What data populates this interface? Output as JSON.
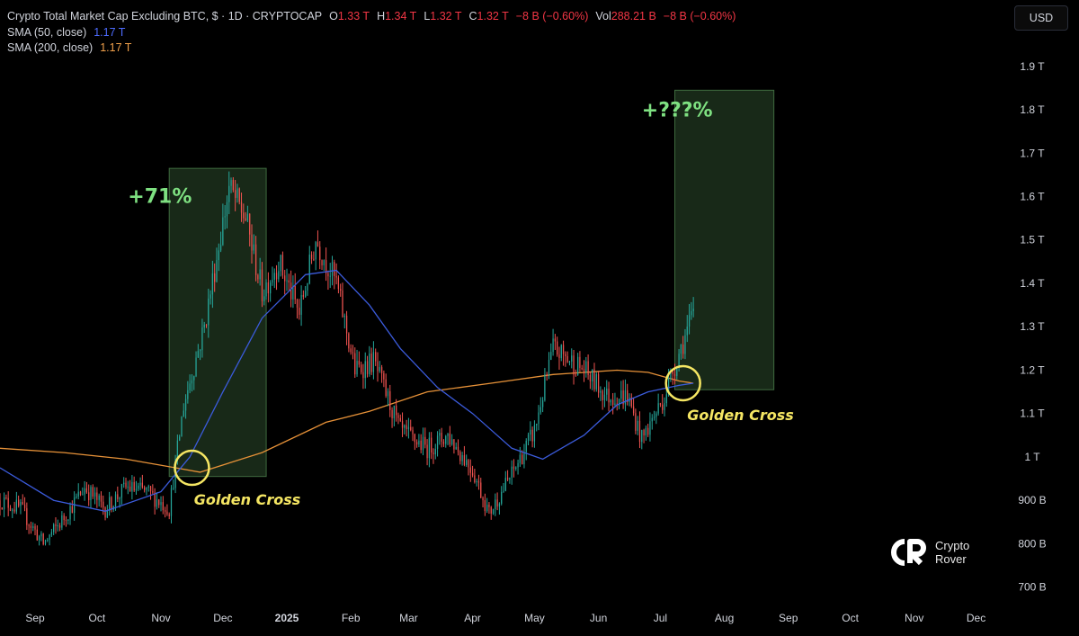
{
  "header": {
    "title": "Crypto Total Market Cap Excluding BTC, $ · 1D · CRYPTOCAP",
    "o_label": "O",
    "o_value": "1.33 T",
    "h_label": "H",
    "h_value": "1.34 T",
    "l_label": "L",
    "l_value": "1.32 T",
    "c_label": "C",
    "c_value": "1.32 T",
    "change": "−8 B (−0.60%)",
    "vol_label": "Vol",
    "vol_value": "288.21 B",
    "vol_change": "−8 B (−0.60%)",
    "sma50_label": "SMA (50, close)",
    "sma50_value": "1.17 T",
    "sma200_label": "SMA (200, close)",
    "sma200_value": "1.17 T"
  },
  "currency_button": "USD",
  "logo": {
    "line1": "Crypto",
    "line2": "Rover"
  },
  "colors": {
    "up": "#26a69a",
    "down": "#ef5350",
    "sma50": "#3b5bdb",
    "sma200": "#e69138",
    "box_fill": "#1b2e1b",
    "box_border": "#3f6b3f",
    "annotation_green": "#7ee081",
    "golden": "#f5e663"
  },
  "chart_data": {
    "type": "candlestick",
    "title": "Crypto Total Market Cap Excluding BTC",
    "y_unit": "USD",
    "ylim": [
      0.66,
      1.97
    ],
    "y_ticks": [
      {
        "v": 1.9,
        "label": "1.9 T"
      },
      {
        "v": 1.8,
        "label": "1.8 T"
      },
      {
        "v": 1.7,
        "label": "1.7 T"
      },
      {
        "v": 1.6,
        "label": "1.6 T"
      },
      {
        "v": 1.5,
        "label": "1.5 T"
      },
      {
        "v": 1.4,
        "label": "1.4 T"
      },
      {
        "v": 1.3,
        "label": "1.3 T"
      },
      {
        "v": 1.2,
        "label": "1.2 T"
      },
      {
        "v": 1.1,
        "label": "1.1 T"
      },
      {
        "v": 1.0,
        "label": "1 T"
      },
      {
        "v": 0.9,
        "label": "900 B"
      },
      {
        "v": 0.8,
        "label": "800 B"
      },
      {
        "v": 0.7,
        "label": "700 B"
      }
    ],
    "x_ticks": [
      {
        "date": "2024-09-01",
        "label": "Sep"
      },
      {
        "date": "2024-10-01",
        "label": "Oct"
      },
      {
        "date": "2024-11-01",
        "label": "Nov"
      },
      {
        "date": "2024-12-01",
        "label": "Dec"
      },
      {
        "date": "2025-01-01",
        "label": "2025",
        "bold": true
      },
      {
        "date": "2025-02-01",
        "label": "Feb"
      },
      {
        "date": "2025-03-01",
        "label": "Mar"
      },
      {
        "date": "2025-04-01",
        "label": "Apr"
      },
      {
        "date": "2025-05-01",
        "label": "May"
      },
      {
        "date": "2025-06-01",
        "label": "Jun"
      },
      {
        "date": "2025-07-01",
        "label": "Jul"
      },
      {
        "date": "2025-08-01",
        "label": "Aug"
      },
      {
        "date": "2025-09-01",
        "label": "Sep"
      },
      {
        "date": "2025-10-01",
        "label": "Oct"
      },
      {
        "date": "2025-11-01",
        "label": "Nov"
      },
      {
        "date": "2025-12-01",
        "label": "Dec"
      }
    ],
    "xlim": [
      "2024-08-15",
      "2025-12-16"
    ],
    "price_anchors": [
      [
        "2024-08-15",
        0.9
      ],
      [
        "2024-08-25",
        0.88
      ],
      [
        "2024-09-05",
        0.8
      ],
      [
        "2024-09-15",
        0.86
      ],
      [
        "2024-09-25",
        0.93
      ],
      [
        "2024-10-05",
        0.88
      ],
      [
        "2024-10-15",
        0.93
      ],
      [
        "2024-10-25",
        0.92
      ],
      [
        "2024-11-05",
        0.88
      ],
      [
        "2024-11-12",
        1.12
      ],
      [
        "2024-11-22",
        1.3
      ],
      [
        "2024-12-04",
        1.62
      ],
      [
        "2024-12-12",
        1.55
      ],
      [
        "2024-12-20",
        1.38
      ],
      [
        "2024-12-28",
        1.45
      ],
      [
        "2025-01-07",
        1.33
      ],
      [
        "2025-01-15",
        1.5
      ],
      [
        "2025-01-25",
        1.4
      ],
      [
        "2025-02-03",
        1.2
      ],
      [
        "2025-02-12",
        1.22
      ],
      [
        "2025-02-25",
        1.06
      ],
      [
        "2025-03-10",
        1.02
      ],
      [
        "2025-03-20",
        1.05
      ],
      [
        "2025-04-01",
        0.97
      ],
      [
        "2025-04-09",
        0.87
      ],
      [
        "2025-04-20",
        0.96
      ],
      [
        "2025-05-01",
        1.06
      ],
      [
        "2025-05-10",
        1.25
      ],
      [
        "2025-05-25",
        1.2
      ],
      [
        "2025-06-05",
        1.14
      ],
      [
        "2025-06-15",
        1.14
      ],
      [
        "2025-06-22",
        1.04
      ],
      [
        "2025-07-03",
        1.14
      ],
      [
        "2025-07-10",
        1.24
      ],
      [
        "2025-07-17",
        1.33
      ]
    ],
    "sma50": [
      [
        "2024-08-15",
        0.975
      ],
      [
        "2024-09-10",
        0.9
      ],
      [
        "2024-10-05",
        0.875
      ],
      [
        "2024-11-01",
        0.92
      ],
      [
        "2024-11-15",
        1.0
      ],
      [
        "2024-12-01",
        1.15
      ],
      [
        "2024-12-20",
        1.32
      ],
      [
        "2025-01-10",
        1.42
      ],
      [
        "2025-01-25",
        1.43
      ],
      [
        "2025-02-10",
        1.35
      ],
      [
        "2025-02-25",
        1.25
      ],
      [
        "2025-03-15",
        1.16
      ],
      [
        "2025-04-01",
        1.1
      ],
      [
        "2025-04-20",
        1.02
      ],
      [
        "2025-05-05",
        0.995
      ],
      [
        "2025-05-25",
        1.05
      ],
      [
        "2025-06-10",
        1.12
      ],
      [
        "2025-06-25",
        1.15
      ],
      [
        "2025-07-10",
        1.165
      ],
      [
        "2025-07-17",
        1.17
      ]
    ],
    "sma200": [
      [
        "2024-08-15",
        1.02
      ],
      [
        "2024-09-15",
        1.01
      ],
      [
        "2024-10-15",
        0.995
      ],
      [
        "2024-11-08",
        0.975
      ],
      [
        "2024-11-20",
        0.965
      ],
      [
        "2024-12-20",
        1.01
      ],
      [
        "2025-01-20",
        1.08
      ],
      [
        "2025-02-10",
        1.105
      ],
      [
        "2025-03-10",
        1.15
      ],
      [
        "2025-04-10",
        1.17
      ],
      [
        "2025-05-10",
        1.19
      ],
      [
        "2025-06-10",
        1.2
      ],
      [
        "2025-06-25",
        1.195
      ],
      [
        "2025-07-10",
        1.175
      ],
      [
        "2025-07-17",
        1.17
      ]
    ],
    "boxes": [
      {
        "x0": "2024-11-05",
        "x1": "2024-12-22",
        "y0": 0.955,
        "y1": 1.665
      },
      {
        "x0": "2025-07-08",
        "x1": "2025-08-25",
        "y0": 1.155,
        "y1": 1.845
      }
    ],
    "markers": [
      {
        "date": "2024-11-16",
        "v": 0.975
      },
      {
        "date": "2025-07-12",
        "v": 1.17
      }
    ],
    "annotations": [
      {
        "id": "gain-71",
        "text": "+71%",
        "date": "2024-10-16",
        "v": 1.585,
        "color": "green"
      },
      {
        "id": "gain-unknown",
        "text": "+???%",
        "date": "2025-06-22",
        "v": 1.785,
        "color": "green"
      },
      {
        "id": "golden-cross-1",
        "text": "Golden Cross",
        "date": "2024-11-17",
        "v": 0.89,
        "color": "golden"
      },
      {
        "id": "golden-cross-2",
        "text": "Golden Cross",
        "date": "2025-07-14",
        "v": 1.085,
        "color": "golden"
      }
    ]
  }
}
